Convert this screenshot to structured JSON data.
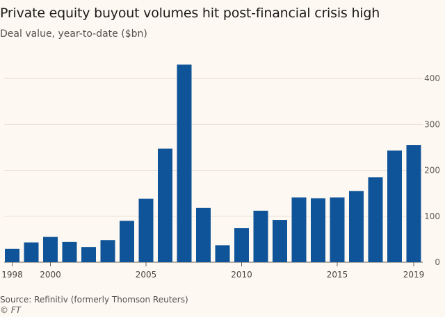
{
  "chart_data": {
    "type": "bar",
    "title": "Private equity buyout volumes hit post-financial crisis high",
    "subtitle": "Deal value, year-to-date ($bn)",
    "xlabel": "",
    "ylabel": "",
    "categories": [
      "1998",
      "1999",
      "2000",
      "2001",
      "2002",
      "2003",
      "2004",
      "2005",
      "2006",
      "2007",
      "2008",
      "2009",
      "2010",
      "2011",
      "2012",
      "2013",
      "2014",
      "2015",
      "2016",
      "2017",
      "2018",
      "2019"
    ],
    "values": [
      29,
      43,
      55,
      44,
      33,
      48,
      90,
      138,
      247,
      430,
      118,
      37,
      74,
      112,
      92,
      141,
      139,
      141,
      155,
      185,
      243,
      255
    ],
    "x_tick_labels": [
      "1998",
      "2000",
      "2005",
      "2010",
      "2015",
      "2019"
    ],
    "y_ticks": [
      0,
      100,
      200,
      300,
      400
    ],
    "ylim": [
      0,
      440
    ],
    "grid": true,
    "bar_color": "#0f5499",
    "y_axis_side": "right"
  },
  "source": "Source: Refinitiv (formerly Thomson Reuters)",
  "copyright": "© FT"
}
